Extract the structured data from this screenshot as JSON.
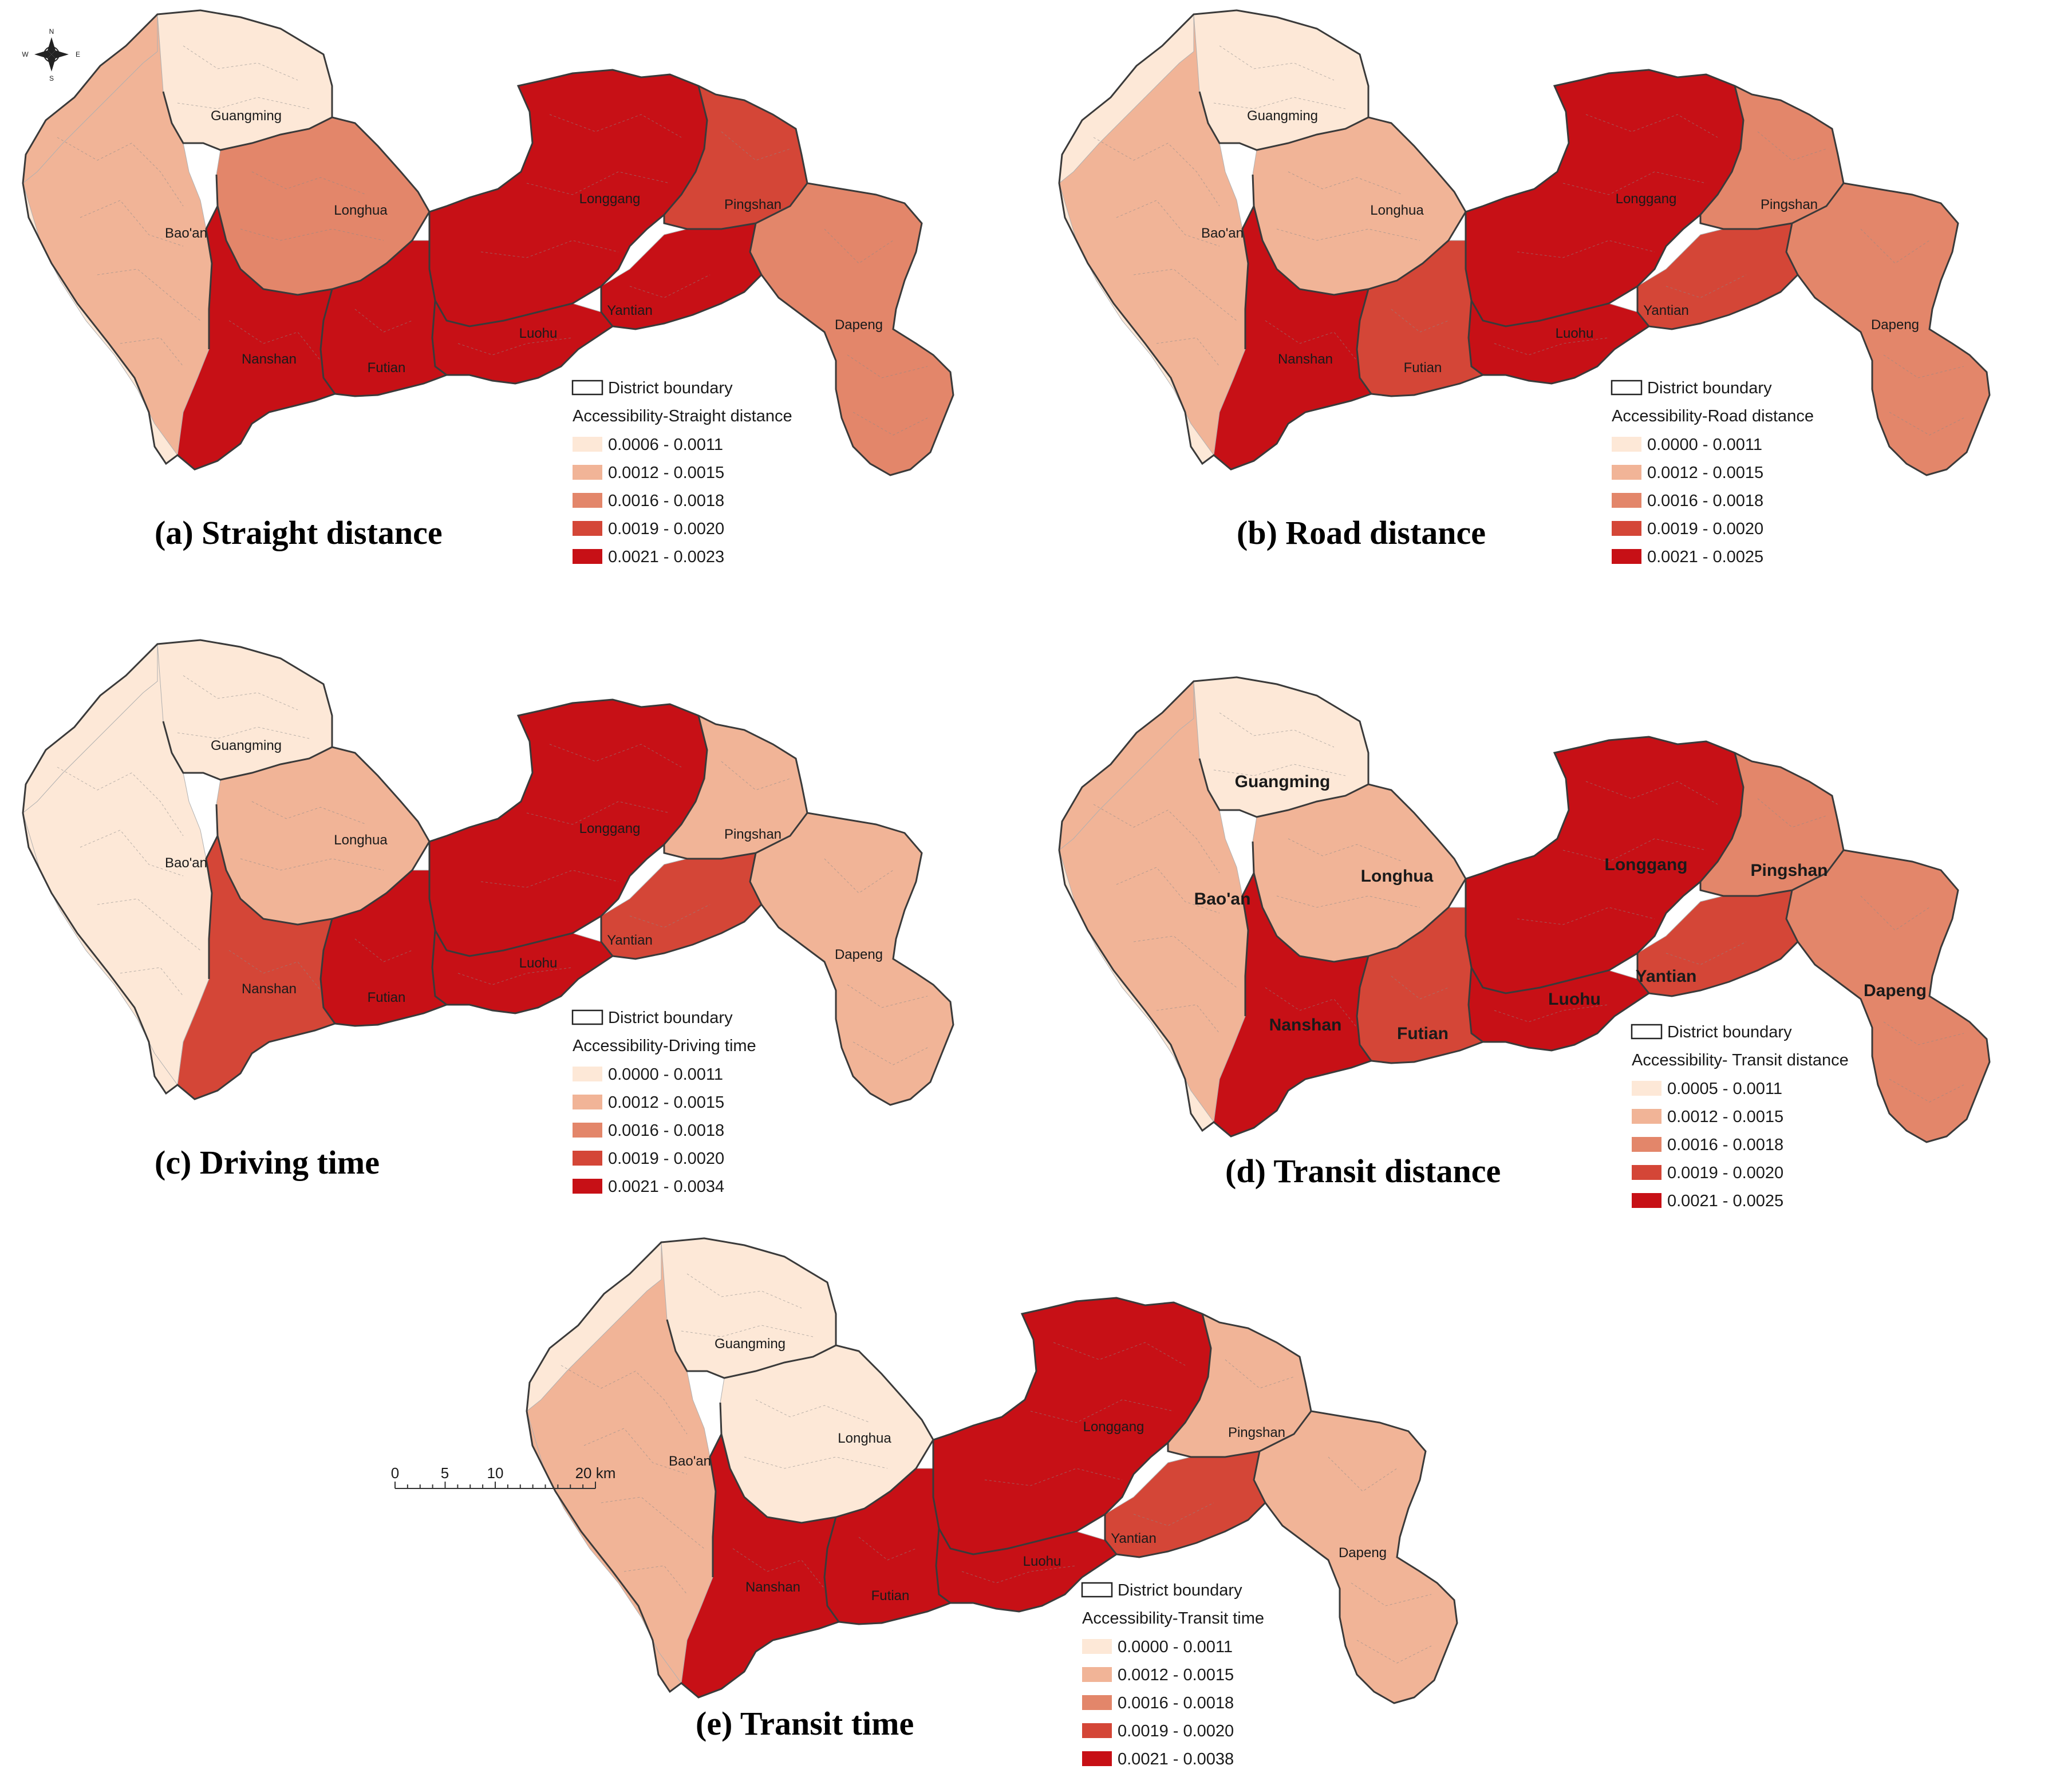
{
  "colors": {
    "class1": "#fde8d7",
    "class2": "#f1b497",
    "class3": "#e3866a",
    "class4": "#d44637",
    "class5": "#c71016",
    "boundary": "#3a3a3a"
  },
  "compass": {
    "n": "N",
    "s": "S",
    "e": "E",
    "w": "W"
  },
  "scalebar": {
    "labels": [
      "0",
      "5",
      "10",
      "20 km"
    ]
  },
  "maps": [
    {
      "id": "a",
      "title": "(a) Straight distance",
      "legend_title": "Accessibility-Straight distance",
      "classes": [
        "0.0006 - 0.0011",
        "0.0012 - 0.0015",
        "0.0016 - 0.0018",
        "0.0019 - 0.0020",
        "0.0021 - 0.0023"
      ],
      "district_class": [
        1,
        2,
        3,
        5,
        4,
        3,
        5,
        5,
        5,
        5,
        2,
        1
      ]
    },
    {
      "id": "b",
      "title": "(b) Road distance",
      "legend_title": "Accessibility-Road distance",
      "classes": [
        "0.0000 - 0.0011",
        "0.0012 - 0.0015",
        "0.0016 - 0.0018",
        "0.0019 - 0.0020",
        "0.0021 - 0.0025"
      ],
      "district_class": [
        1,
        2,
        2,
        5,
        3,
        3,
        4,
        5,
        4,
        5,
        1,
        1
      ]
    },
    {
      "id": "c",
      "title": "(c) Driving time",
      "legend_title": "Accessibility-Driving time",
      "classes": [
        "0.0000 - 0.0011",
        "0.0012 - 0.0015",
        "0.0016 - 0.0018",
        "0.0019 - 0.0020",
        "0.0021 - 0.0034"
      ],
      "district_class": [
        1,
        1,
        2,
        5,
        2,
        2,
        4,
        5,
        5,
        4,
        1,
        1
      ]
    },
    {
      "id": "d",
      "title": "(d) Transit distance",
      "legend_title": "Accessibility- Transit distance",
      "classes": [
        "0.0005 - 0.0011",
        "0.0012 - 0.0015",
        "0.0016 - 0.0018",
        "0.0019 - 0.0020",
        "0.0021 - 0.0025"
      ],
      "district_class": [
        1,
        2,
        2,
        5,
        3,
        3,
        4,
        5,
        4,
        5,
        2,
        1
      ]
    },
    {
      "id": "e",
      "title": "(e) Transit time",
      "legend_title": "Accessibility-Transit time",
      "classes": [
        "0.0000 - 0.0011",
        "0.0012 - 0.0015",
        "0.0016 - 0.0018",
        "0.0019 - 0.0020",
        "0.0021 - 0.0038"
      ],
      "district_class": [
        1,
        2,
        1,
        5,
        2,
        2,
        4,
        5,
        5,
        5,
        1,
        2
      ]
    }
  ],
  "legend_boundary_label": "District boundary",
  "districts": [
    "Guangming",
    "Bao'an",
    "Longhua",
    "Longgang",
    "Pingshan",
    "Dapeng",
    "Yantian",
    "Luohu",
    "Futian",
    "Nanshan"
  ]
}
